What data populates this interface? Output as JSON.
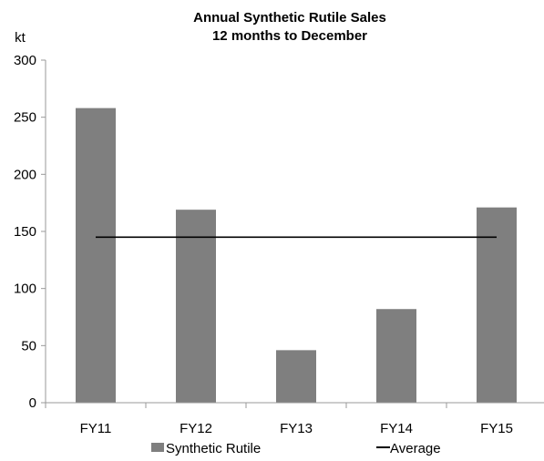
{
  "chart_data": {
    "type": "bar",
    "title": "Annual Synthetic Rutile Sales",
    "subtitle": "12 months to December",
    "ylabel": "kt",
    "xlabel": "",
    "categories": [
      "FY11",
      "FY12",
      "FY13",
      "FY14",
      "FY15"
    ],
    "series": [
      {
        "name": "Synthetic Rutile",
        "type": "bar",
        "values": [
          258,
          169,
          46,
          82,
          171
        ],
        "color": "#7f7f7f"
      },
      {
        "name": "Average",
        "type": "line",
        "values": [
          145,
          145,
          145,
          145,
          145
        ],
        "color": "#000000"
      }
    ],
    "ylim": [
      0,
      300
    ],
    "yticks": [
      "0",
      "50",
      "100",
      "150",
      "200",
      "250",
      "300"
    ],
    "grid": false,
    "legend": "bottom"
  }
}
